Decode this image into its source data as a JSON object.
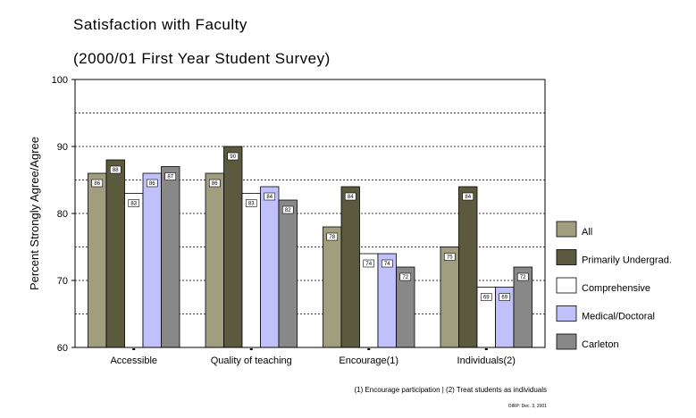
{
  "chart_data": {
    "type": "bar",
    "title": "Satisfaction with Faculty",
    "subtitle": "(2000/01 First Year Student Survey)",
    "xlabel": "",
    "ylabel": "Percent Strongly Agree/Agree",
    "ylim": [
      60,
      100
    ],
    "yticks": [
      "60",
      "70",
      "80",
      "90",
      "100"
    ],
    "grid": true,
    "legend_position": "right",
    "categories": [
      "Accessible",
      "Quality of teaching",
      "Encourage(1)",
      "Individuals(2)"
    ],
    "series": [
      {
        "name": "All",
        "color": "#a09e7e",
        "values": [
          86,
          86,
          78,
          75
        ],
        "labels": [
          "86",
          "86",
          "78",
          "75"
        ]
      },
      {
        "name": "Primarily Undergrad.",
        "color": "#5c5a3e",
        "values": [
          88,
          90,
          84,
          84
        ],
        "labels": [
          "88",
          "90",
          "84",
          "84"
        ]
      },
      {
        "name": "Comprehensive",
        "color": "#ffffff",
        "values": [
          83,
          83,
          74,
          69
        ],
        "labels": [
          "83",
          "83",
          "74",
          "69"
        ]
      },
      {
        "name": "Medical/Doctoral",
        "color": "#c0c0fa",
        "values": [
          86,
          84,
          74,
          69
        ],
        "labels": [
          "86",
          "84",
          "74",
          "69"
        ]
      },
      {
        "name": "Carleton",
        "color": "#888888",
        "values": [
          87,
          82,
          72,
          72
        ],
        "labels": [
          "87",
          "82",
          "72",
          "72"
        ]
      }
    ],
    "footnote": "(1) Encourage participation  |  (2) Treat students as individuals",
    "credit": "OIRP: Dec. 3, 2001"
  }
}
